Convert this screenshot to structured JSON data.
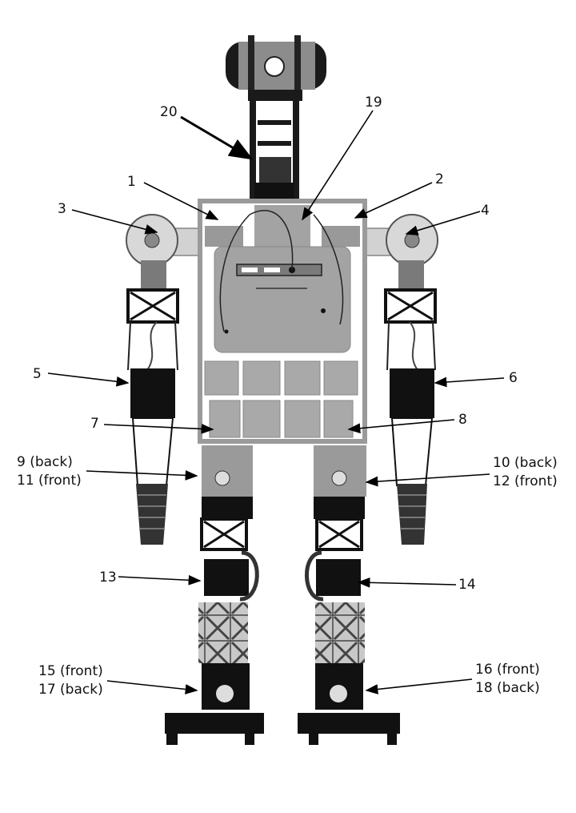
{
  "labels": {
    "l1": "1",
    "l2": "2",
    "l3": "3",
    "l4": "4",
    "l5": "5",
    "l6": "6",
    "l7": "7",
    "l8": "8",
    "l9a": "9 (back)",
    "l9b": "11 (front)",
    "l10a": "10 (back)",
    "l10b": "12 (front)",
    "l13": "13",
    "l14": "14",
    "l15a": "15 (front)",
    "l15b": "17 (back)",
    "l16a": "16 (front)",
    "l16b": "18 (back)",
    "l19": "19",
    "l20": "20"
  },
  "colors": {
    "frame": "#9a9a9a",
    "panel": "#a3a3a3",
    "servo": "#111111",
    "light_gray": "#cfcfcf",
    "dark": "#1a1a1a"
  }
}
